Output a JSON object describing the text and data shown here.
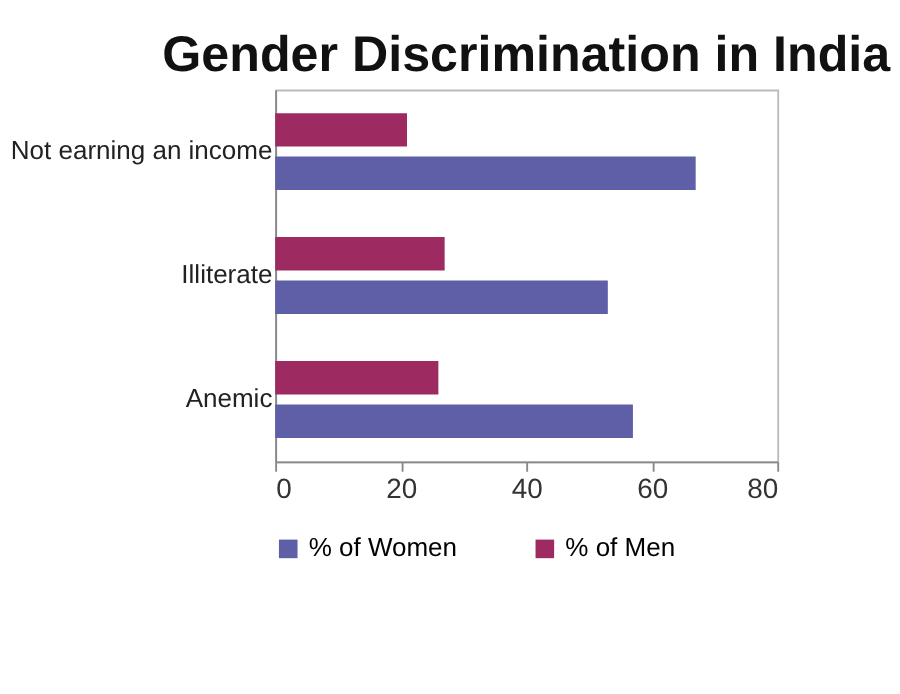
{
  "chart_data": {
    "type": "bar",
    "orientation": "horizontal",
    "title": "Gender Discrimination in India",
    "categories": [
      "Not earning an income",
      "Illiterate",
      "Anemic"
    ],
    "series": [
      {
        "name": "% of Women",
        "color": "#5f5fa8",
        "values": [
          67,
          53,
          57
        ]
      },
      {
        "name": "% of Men",
        "color": "#9e2a62",
        "values": [
          21,
          27,
          26
        ]
      }
    ],
    "xlim": [
      0,
      80
    ],
    "xticks": [
      0,
      20,
      40,
      60,
      80
    ],
    "grid": false,
    "legend": "bottom"
  }
}
